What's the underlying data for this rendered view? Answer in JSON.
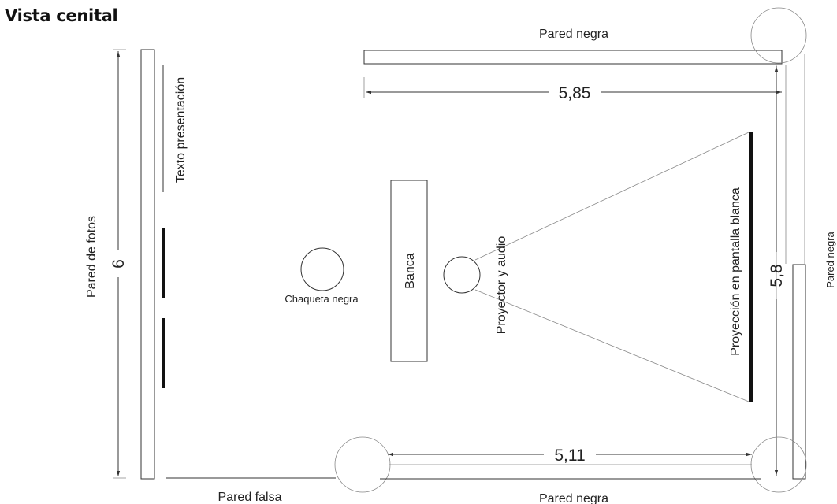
{
  "title": "Vista cenital",
  "labels": {
    "pared_negra_top": "Pared negra",
    "pared_negra_bottom": "Pared negra",
    "pared_negra_right": "Pared negra",
    "pared_falsa": "Pared falsa",
    "pared_fotos": "Pared de fotos",
    "texto_presentacion": "Texto presentación",
    "chaqueta": "Chaqueta negra",
    "banca": "Banca",
    "proyector": "Proyector y audio",
    "proyeccion": "Proyección en pantalla blanca"
  },
  "dimensions": {
    "top_width": "5,85",
    "bottom_width": "5,11",
    "right_height": "5,8",
    "left_height": "6"
  }
}
